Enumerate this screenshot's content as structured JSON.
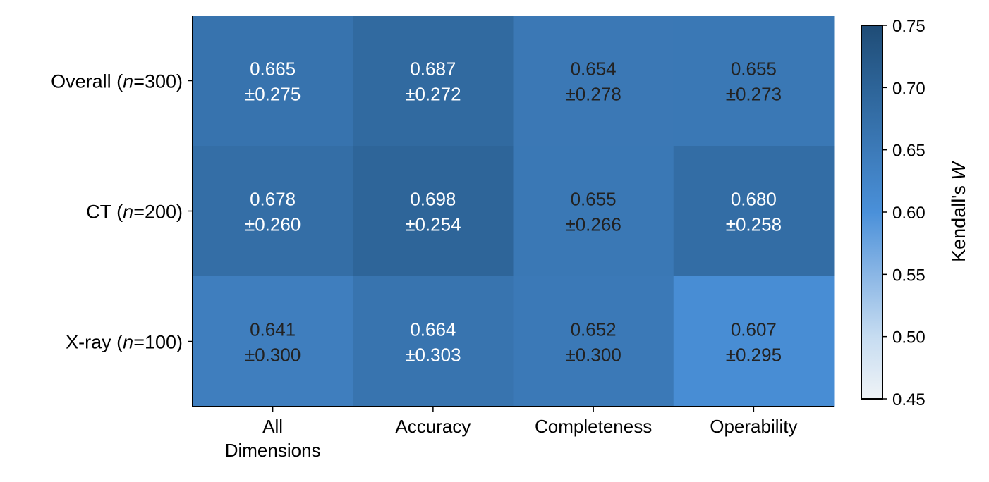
{
  "chart_data": {
    "type": "heatmap",
    "columns": [
      "All\nDimensions",
      "Accuracy",
      "Completeness",
      "Operability"
    ],
    "rows": [
      {
        "label_prefix": "Overall (",
        "label_var": "n",
        "label_suffix": "=300)"
      },
      {
        "label_prefix": "CT (",
        "label_var": "n",
        "label_suffix": "=200)"
      },
      {
        "label_prefix": "X-ray (",
        "label_var": "n",
        "label_suffix": "=100)"
      }
    ],
    "values": [
      [
        0.665,
        0.687,
        0.654,
        0.655
      ],
      [
        0.678,
        0.698,
        0.655,
        0.68
      ],
      [
        0.641,
        0.664,
        0.652,
        0.607
      ]
    ],
    "std": [
      [
        0.275,
        0.272,
        0.278,
        0.273
      ],
      [
        0.26,
        0.254,
        0.266,
        0.258
      ],
      [
        0.3,
        0.303,
        0.3,
        0.295
      ]
    ],
    "value_labels": [
      [
        [
          "0.665",
          "±0.275"
        ],
        [
          "0.687",
          "±0.272"
        ],
        [
          "0.654",
          "±0.278"
        ],
        [
          "0.655",
          "±0.273"
        ]
      ],
      [
        [
          "0.678",
          "±0.260"
        ],
        [
          "0.698",
          "±0.254"
        ],
        [
          "0.655",
          "±0.266"
        ],
        [
          "0.680",
          "±0.258"
        ]
      ],
      [
        [
          "0.641",
          "±0.300"
        ],
        [
          "0.664",
          "±0.303"
        ],
        [
          "0.652",
          "±0.300"
        ],
        [
          "0.607",
          "±0.295"
        ]
      ]
    ],
    "colorbar": {
      "label_prefix": "Kendall's ",
      "label_var": "W",
      "range": [
        0.45,
        0.75
      ],
      "ticks": [
        "0.75",
        "0.70",
        "0.65",
        "0.60",
        "0.55",
        "0.50",
        "0.45"
      ],
      "colormap": [
        "#eff3f6",
        "#c6dcf1",
        "#8ab6e5",
        "#4a90d9",
        "#3c7ab8",
        "#2d6498",
        "#1f4c76"
      ]
    },
    "text_color_light": "#ffffff",
    "text_color_dark": "#222222",
    "light_text_threshold": 0.66
  }
}
